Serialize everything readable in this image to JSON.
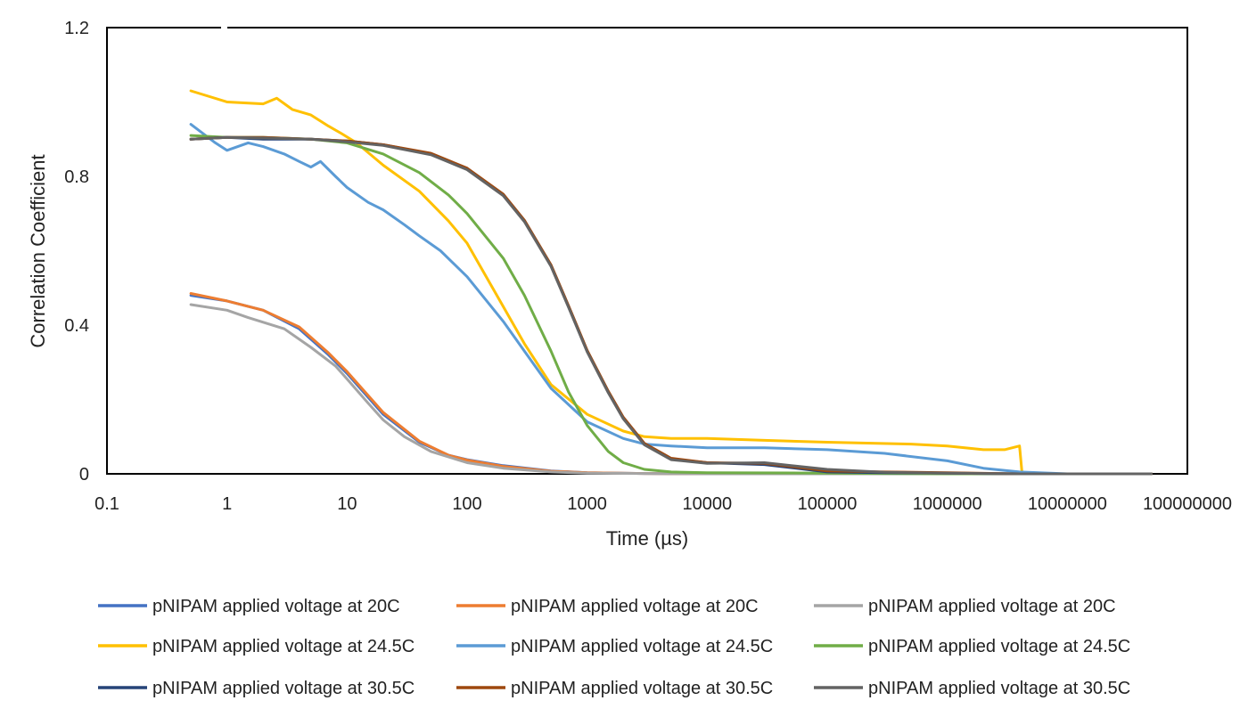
{
  "chart_data": {
    "type": "line",
    "title": "",
    "xlabel": "Time (µs)",
    "ylabel": "Correlation Coefficient",
    "xscale": "log",
    "xlim": [
      0.1,
      100000000
    ],
    "ylim": [
      0,
      1.2
    ],
    "grid": false,
    "legend_position": "bottom",
    "x_ticks": [
      "0.1",
      "1",
      "10",
      "100",
      "1000",
      "10000",
      "100000",
      "1000000",
      "10000000",
      "100000000"
    ],
    "y_ticks": [
      "0",
      "0.4",
      "0.8",
      "1.2"
    ],
    "series": [
      {
        "name": "pNIPAM applied voltage at 20C",
        "color": "#4472C4",
        "points": [
          [
            0.5,
            0.48
          ],
          [
            1,
            0.465
          ],
          [
            2,
            0.44
          ],
          [
            4,
            0.39
          ],
          [
            7,
            0.32
          ],
          [
            10,
            0.27
          ],
          [
            20,
            0.16
          ],
          [
            40,
            0.085
          ],
          [
            70,
            0.05
          ],
          [
            100,
            0.038
          ],
          [
            200,
            0.022
          ],
          [
            500,
            0.008
          ],
          [
            1000,
            0.003
          ],
          [
            3000,
            0.001
          ],
          [
            10000,
            0
          ],
          [
            1000000,
            0
          ],
          [
            4000000,
            0
          ],
          [
            50000000,
            0
          ]
        ]
      },
      {
        "name": "pNIPAM applied voltage at 20C",
        "color": "#ED7D31",
        "points": [
          [
            0.5,
            0.485
          ],
          [
            1,
            0.465
          ],
          [
            2,
            0.44
          ],
          [
            4,
            0.395
          ],
          [
            7,
            0.325
          ],
          [
            10,
            0.275
          ],
          [
            20,
            0.165
          ],
          [
            40,
            0.088
          ],
          [
            70,
            0.05
          ],
          [
            100,
            0.037
          ],
          [
            200,
            0.02
          ],
          [
            500,
            0.007
          ],
          [
            1000,
            0.003
          ],
          [
            3000,
            0.001
          ],
          [
            10000,
            0
          ],
          [
            1000000,
            0
          ],
          [
            4000000,
            0
          ],
          [
            50000000,
            0
          ]
        ]
      },
      {
        "name": "pNIPAM applied voltage at 20C",
        "color": "#A5A5A5",
        "points": [
          [
            0.5,
            0.455
          ],
          [
            1,
            0.44
          ],
          [
            1.5,
            0.42
          ],
          [
            3,
            0.39
          ],
          [
            5,
            0.34
          ],
          [
            8,
            0.29
          ],
          [
            10,
            0.255
          ],
          [
            15,
            0.19
          ],
          [
            20,
            0.145
          ],
          [
            30,
            0.1
          ],
          [
            50,
            0.06
          ],
          [
            100,
            0.03
          ],
          [
            200,
            0.015
          ],
          [
            500,
            0.005
          ],
          [
            1000,
            0.002
          ],
          [
            10000,
            0
          ],
          [
            1000000,
            0
          ],
          [
            50000000,
            0
          ]
        ]
      },
      {
        "name": "pNIPAM applied voltage at 24.5C",
        "color": "#FFC000",
        "points": [
          [
            0.5,
            1.03
          ],
          [
            1,
            1.0
          ],
          [
            2,
            0.995
          ],
          [
            2.6,
            1.01
          ],
          [
            3.5,
            0.98
          ],
          [
            5,
            0.965
          ],
          [
            7,
            0.935
          ],
          [
            9,
            0.915
          ],
          [
            12,
            0.89
          ],
          [
            20,
            0.83
          ],
          [
            40,
            0.76
          ],
          [
            70,
            0.68
          ],
          [
            100,
            0.62
          ],
          [
            200,
            0.45
          ],
          [
            300,
            0.35
          ],
          [
            500,
            0.24
          ],
          [
            1000,
            0.16
          ],
          [
            2000,
            0.115
          ],
          [
            3000,
            0.1
          ],
          [
            5000,
            0.095
          ],
          [
            10000,
            0.095
          ],
          [
            30000,
            0.09
          ],
          [
            100000,
            0.085
          ],
          [
            500000,
            0.08
          ],
          [
            1000000,
            0.075
          ],
          [
            2000000,
            0.065
          ],
          [
            3000000,
            0.065
          ],
          [
            4000000,
            0.075
          ],
          [
            4200000,
            0
          ],
          [
            10000000,
            0
          ],
          [
            50000000,
            0
          ]
        ]
      },
      {
        "name": "pNIPAM applied voltage at 24.5C",
        "color": "#5B9BD5",
        "points": [
          [
            0.5,
            0.94
          ],
          [
            0.8,
            0.89
          ],
          [
            1,
            0.87
          ],
          [
            1.5,
            0.89
          ],
          [
            2,
            0.88
          ],
          [
            3,
            0.86
          ],
          [
            4,
            0.84
          ],
          [
            5,
            0.825
          ],
          [
            6,
            0.84
          ],
          [
            8,
            0.8
          ],
          [
            10,
            0.77
          ],
          [
            15,
            0.73
          ],
          [
            20,
            0.71
          ],
          [
            30,
            0.67
          ],
          [
            40,
            0.64
          ],
          [
            60,
            0.6
          ],
          [
            100,
            0.53
          ],
          [
            200,
            0.41
          ],
          [
            300,
            0.33
          ],
          [
            500,
            0.23
          ],
          [
            1000,
            0.14
          ],
          [
            2000,
            0.095
          ],
          [
            3000,
            0.08
          ],
          [
            5000,
            0.075
          ],
          [
            10000,
            0.07
          ],
          [
            30000,
            0.07
          ],
          [
            100000,
            0.065
          ],
          [
            300000,
            0.055
          ],
          [
            1000000,
            0.035
          ],
          [
            2000000,
            0.015
          ],
          [
            4000000,
            0.005
          ],
          [
            10000000,
            0
          ],
          [
            50000000,
            0
          ]
        ]
      },
      {
        "name": "pNIPAM applied voltage at 24.5C",
        "color": "#70AD47",
        "points": [
          [
            0.5,
            0.91
          ],
          [
            1,
            0.905
          ],
          [
            2,
            0.905
          ],
          [
            5,
            0.9
          ],
          [
            10,
            0.89
          ],
          [
            20,
            0.86
          ],
          [
            40,
            0.81
          ],
          [
            70,
            0.75
          ],
          [
            100,
            0.7
          ],
          [
            200,
            0.58
          ],
          [
            300,
            0.48
          ],
          [
            500,
            0.33
          ],
          [
            700,
            0.22
          ],
          [
            1000,
            0.13
          ],
          [
            1500,
            0.06
          ],
          [
            2000,
            0.03
          ],
          [
            3000,
            0.012
          ],
          [
            5000,
            0.005
          ],
          [
            10000,
            0.003
          ],
          [
            100000,
            0.002
          ],
          [
            1000000,
            0
          ],
          [
            4000000,
            0
          ],
          [
            50000000,
            0
          ]
        ]
      },
      {
        "name": "pNIPAM applied voltage at 30.5C",
        "color": "#264478",
        "points": [
          [
            0.5,
            0.9
          ],
          [
            1,
            0.905
          ],
          [
            2,
            0.9
          ],
          [
            5,
            0.9
          ],
          [
            10,
            0.895
          ],
          [
            20,
            0.885
          ],
          [
            50,
            0.86
          ],
          [
            100,
            0.82
          ],
          [
            200,
            0.75
          ],
          [
            300,
            0.68
          ],
          [
            500,
            0.56
          ],
          [
            700,
            0.45
          ],
          [
            1000,
            0.33
          ],
          [
            1500,
            0.22
          ],
          [
            2000,
            0.15
          ],
          [
            3000,
            0.08
          ],
          [
            5000,
            0.04
          ],
          [
            10000,
            0.03
          ],
          [
            30000,
            0.025
          ],
          [
            100000,
            0.005
          ],
          [
            300000,
            0.003
          ],
          [
            1000000,
            0.002
          ],
          [
            4000000,
            0
          ],
          [
            50000000,
            0
          ]
        ]
      },
      {
        "name": "pNIPAM applied voltage at 30.5C",
        "color": "#9E480E",
        "points": [
          [
            0.5,
            0.9
          ],
          [
            1,
            0.905
          ],
          [
            2,
            0.905
          ],
          [
            5,
            0.9
          ],
          [
            10,
            0.895
          ],
          [
            20,
            0.885
          ],
          [
            50,
            0.862
          ],
          [
            100,
            0.822
          ],
          [
            200,
            0.752
          ],
          [
            300,
            0.682
          ],
          [
            500,
            0.562
          ],
          [
            700,
            0.452
          ],
          [
            1000,
            0.332
          ],
          [
            1500,
            0.222
          ],
          [
            2000,
            0.152
          ],
          [
            3000,
            0.082
          ],
          [
            5000,
            0.042
          ],
          [
            10000,
            0.03
          ],
          [
            30000,
            0.028
          ],
          [
            100000,
            0.008
          ],
          [
            300000,
            0.005
          ],
          [
            1000000,
            0.003
          ],
          [
            4000000,
            0
          ],
          [
            50000000,
            0
          ]
        ]
      },
      {
        "name": "pNIPAM applied voltage at 30.5C",
        "color": "#636363",
        "points": [
          [
            0.5,
            0.9
          ],
          [
            1,
            0.905
          ],
          [
            2,
            0.903
          ],
          [
            5,
            0.9
          ],
          [
            10,
            0.893
          ],
          [
            20,
            0.883
          ],
          [
            50,
            0.858
          ],
          [
            100,
            0.818
          ],
          [
            200,
            0.748
          ],
          [
            300,
            0.678
          ],
          [
            500,
            0.558
          ],
          [
            700,
            0.448
          ],
          [
            1000,
            0.328
          ],
          [
            1500,
            0.218
          ],
          [
            2000,
            0.148
          ],
          [
            3000,
            0.078
          ],
          [
            5000,
            0.038
          ],
          [
            10000,
            0.028
          ],
          [
            30000,
            0.03
          ],
          [
            100000,
            0.012
          ],
          [
            300000,
            0.004
          ],
          [
            1000000,
            0.002
          ],
          [
            4000000,
            0
          ],
          [
            50000000,
            0
          ]
        ]
      }
    ]
  }
}
